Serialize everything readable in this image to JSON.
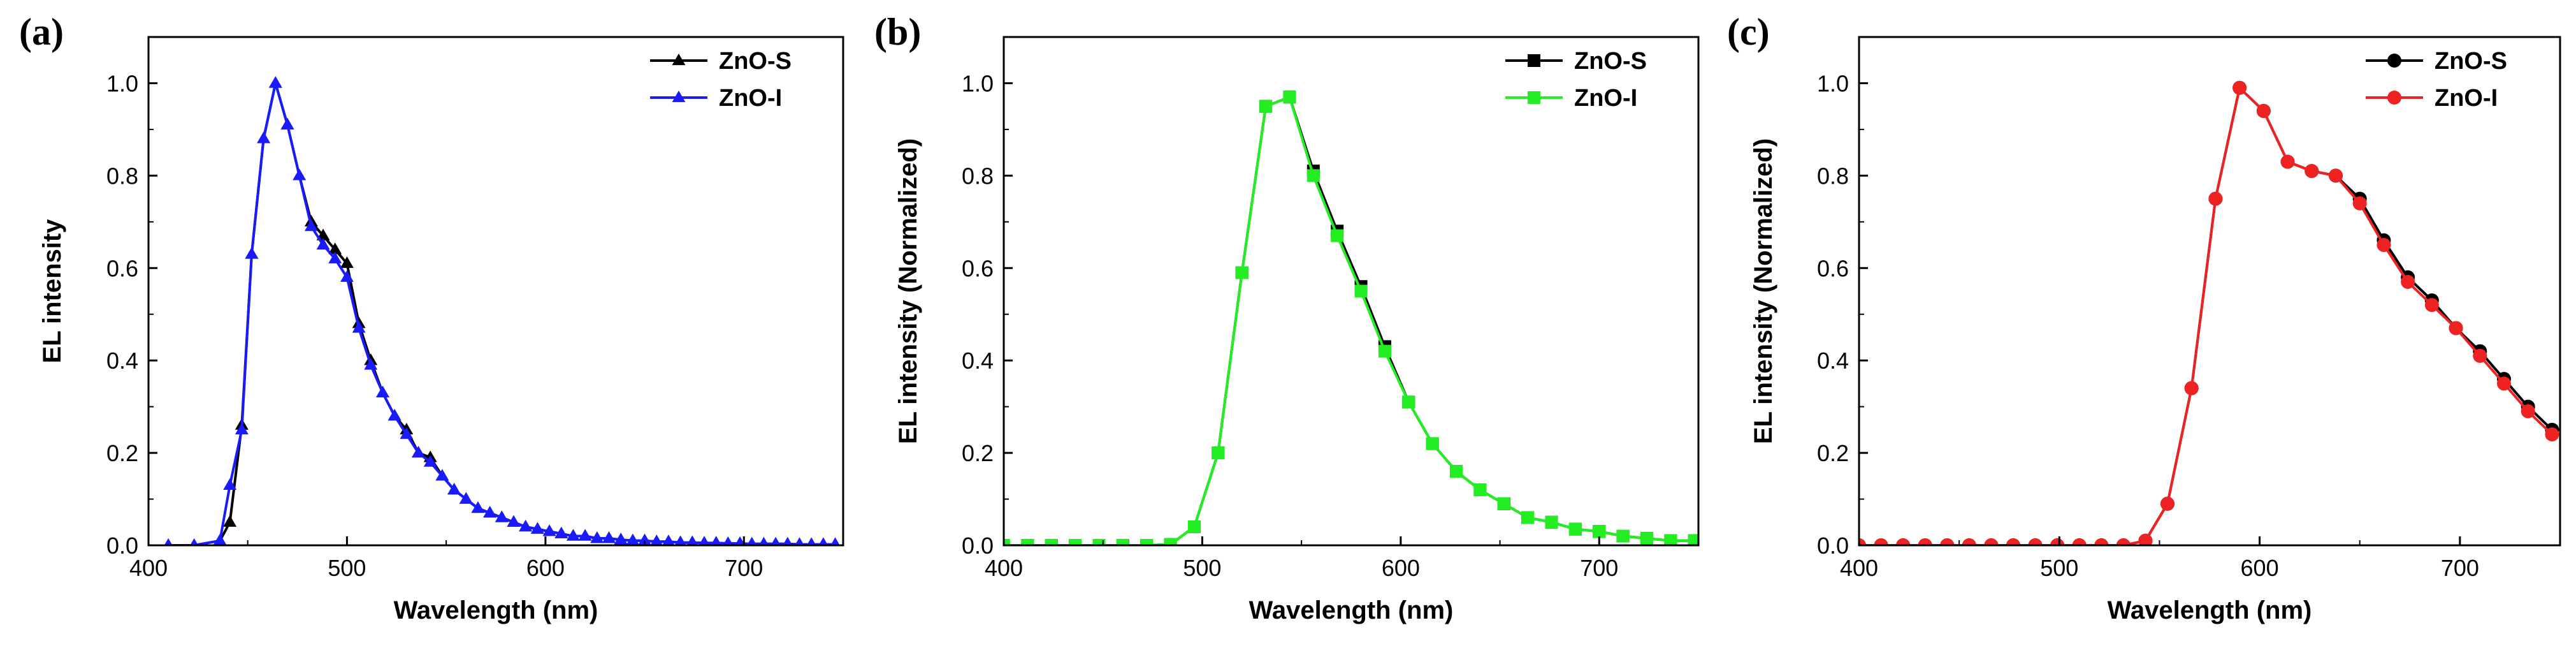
{
  "chart_data": [
    {
      "type": "line",
      "panel_label": "(a)",
      "xlabel": "Wavelength (nm)",
      "ylabel": "EL intensity",
      "xlim": [
        400,
        750
      ],
      "ylim": [
        0,
        1.1
      ],
      "x_ticks": [
        400,
        500,
        600,
        700
      ],
      "x_tick_labels": [
        "400",
        "500",
        "600",
        "700"
      ],
      "y_ticks": [
        0.0,
        0.2,
        0.4,
        0.6,
        0.8,
        1.0
      ],
      "y_tick_labels": [
        "0.0",
        "0.2",
        "0.4",
        "0.6",
        "0.8",
        "1.0"
      ],
      "legend_position": "top-right",
      "series": [
        {
          "name": "ZnO-S",
          "color": "#000000",
          "marker": "triangle",
          "x": [
            410,
            423,
            436,
            441,
            447,
            452,
            458,
            464,
            470,
            476,
            482,
            488,
            494,
            500,
            506,
            512,
            518,
            524,
            530,
            536,
            542,
            548,
            554,
            560,
            566,
            572,
            578,
            584,
            590,
            596,
            602,
            608,
            614,
            620,
            626,
            632,
            638,
            644,
            650,
            656,
            662,
            668,
            674,
            680,
            686,
            692,
            698,
            704,
            710,
            716,
            722,
            728,
            734,
            740,
            746
          ],
          "y": [
            0.0,
            0.0,
            0.01,
            0.05,
            0.26,
            0.63,
            0.88,
            1.0,
            0.91,
            0.8,
            0.7,
            0.67,
            0.64,
            0.61,
            0.48,
            0.4,
            0.33,
            0.28,
            0.25,
            0.2,
            0.19,
            0.15,
            0.12,
            0.1,
            0.08,
            0.07,
            0.06,
            0.05,
            0.04,
            0.035,
            0.03,
            0.025,
            0.02,
            0.02,
            0.015,
            0.015,
            0.012,
            0.01,
            0.01,
            0.008,
            0.008,
            0.006,
            0.006,
            0.005,
            0.005,
            0.004,
            0.004,
            0.003,
            0.003,
            0.003,
            0.003,
            0.002,
            0.002,
            0.002,
            0.002
          ]
        },
        {
          "name": "ZnO-I",
          "color": "#1a1aff",
          "marker": "triangle",
          "x": [
            410,
            423,
            436,
            441,
            447,
            452,
            458,
            464,
            470,
            476,
            482,
            488,
            494,
            500,
            506,
            512,
            518,
            524,
            530,
            536,
            542,
            548,
            554,
            560,
            566,
            572,
            578,
            584,
            590,
            596,
            602,
            608,
            614,
            620,
            626,
            632,
            638,
            644,
            650,
            656,
            662,
            668,
            674,
            680,
            686,
            692,
            698,
            704,
            710,
            716,
            722,
            728,
            734,
            740,
            746
          ],
          "y": [
            0.0,
            0.0,
            0.01,
            0.13,
            0.25,
            0.63,
            0.88,
            1.0,
            0.91,
            0.8,
            0.69,
            0.65,
            0.62,
            0.58,
            0.47,
            0.39,
            0.33,
            0.28,
            0.24,
            0.2,
            0.18,
            0.15,
            0.12,
            0.1,
            0.08,
            0.07,
            0.06,
            0.05,
            0.04,
            0.035,
            0.03,
            0.025,
            0.02,
            0.02,
            0.015,
            0.015,
            0.012,
            0.01,
            0.01,
            0.008,
            0.008,
            0.006,
            0.006,
            0.005,
            0.005,
            0.004,
            0.004,
            0.003,
            0.003,
            0.003,
            0.003,
            0.002,
            0.002,
            0.002,
            0.002
          ]
        }
      ]
    },
    {
      "type": "line",
      "panel_label": "(b)",
      "xlabel": "Wavelength (nm)",
      "ylabel": "EL intensity (Normalized)",
      "xlim": [
        400,
        750
      ],
      "ylim": [
        0,
        1.1
      ],
      "x_ticks": [
        400,
        500,
        600,
        700
      ],
      "x_tick_labels": [
        "400",
        "500",
        "600",
        "700"
      ],
      "y_ticks": [
        0.0,
        0.2,
        0.4,
        0.6,
        0.8,
        1.0
      ],
      "y_tick_labels": [
        "0.0",
        "0.2",
        "0.4",
        "0.6",
        "0.8",
        "1.0"
      ],
      "legend_position": "top-right",
      "series": [
        {
          "name": "ZnO-S",
          "color": "#000000",
          "marker": "square",
          "x": [
            400,
            412,
            424,
            436,
            448,
            460,
            472,
            484,
            496,
            508,
            520,
            532,
            544,
            556,
            568,
            580,
            592,
            604,
            616,
            628,
            640,
            652,
            664,
            676,
            688,
            700,
            712,
            724,
            736,
            748
          ],
          "y": [
            0.0,
            0.0,
            0.0,
            0.0,
            0.0,
            0.0,
            0.0,
            0.002,
            0.04,
            0.2,
            0.59,
            0.95,
            0.97,
            0.81,
            0.68,
            0.56,
            0.43,
            0.31,
            0.22,
            0.16,
            0.12,
            0.09,
            0.06,
            0.05,
            0.035,
            0.03,
            0.02,
            0.015,
            0.01,
            0.01
          ]
        },
        {
          "name": "ZnO-I",
          "color": "#22ee22",
          "marker": "square",
          "x": [
            400,
            412,
            424,
            436,
            448,
            460,
            472,
            484,
            496,
            508,
            520,
            532,
            544,
            556,
            568,
            580,
            592,
            604,
            616,
            628,
            640,
            652,
            664,
            676,
            688,
            700,
            712,
            724,
            736,
            748
          ],
          "y": [
            0.0,
            0.0,
            0.0,
            0.0,
            0.0,
            0.0,
            0.0,
            0.002,
            0.04,
            0.2,
            0.59,
            0.95,
            0.97,
            0.8,
            0.67,
            0.55,
            0.42,
            0.31,
            0.22,
            0.16,
            0.12,
            0.09,
            0.06,
            0.05,
            0.035,
            0.03,
            0.02,
            0.015,
            0.01,
            0.01
          ]
        }
      ]
    },
    {
      "type": "line",
      "panel_label": "(c)",
      "xlabel": "Wavelength (nm)",
      "ylabel": "EL intensity (Normalized)",
      "xlim": [
        400,
        750
      ],
      "ylim": [
        0,
        1.1
      ],
      "x_ticks": [
        400,
        500,
        600,
        700
      ],
      "x_tick_labels": [
        "400",
        "500",
        "600",
        "700"
      ],
      "y_ticks": [
        0.0,
        0.2,
        0.4,
        0.6,
        0.8,
        1.0
      ],
      "y_tick_labels": [
        "0.0",
        "0.2",
        "0.4",
        "0.6",
        "0.8",
        "1.0"
      ],
      "legend_position": "top-right",
      "series": [
        {
          "name": "ZnO-S",
          "color": "#000000",
          "marker": "circle",
          "x": [
            400,
            411,
            422,
            433,
            444,
            455,
            466,
            477,
            488,
            499,
            510,
            521,
            532,
            543,
            554,
            566,
            578,
            590,
            602,
            614,
            626,
            638,
            650,
            662,
            674,
            686,
            698,
            710,
            722,
            734,
            746
          ],
          "y": [
            0.0,
            0.0,
            0.0,
            0.0,
            0.0,
            0.0,
            0.0,
            0.0,
            0.0,
            0.0,
            0.0,
            0.0,
            0.0,
            0.01,
            0.09,
            0.34,
            0.75,
            0.99,
            0.94,
            0.83,
            0.81,
            0.8,
            0.75,
            0.66,
            0.58,
            0.53,
            0.47,
            0.42,
            0.36,
            0.3,
            0.25
          ]
        },
        {
          "name": "ZnO-I",
          "color": "#ee2222",
          "marker": "circle",
          "x": [
            400,
            411,
            422,
            433,
            444,
            455,
            466,
            477,
            488,
            499,
            510,
            521,
            532,
            543,
            554,
            566,
            578,
            590,
            602,
            614,
            626,
            638,
            650,
            662,
            674,
            686,
            698,
            710,
            722,
            734,
            746
          ],
          "y": [
            0.0,
            0.0,
            0.0,
            0.0,
            0.0,
            0.0,
            0.0,
            0.0,
            0.0,
            0.0,
            0.0,
            0.0,
            0.0,
            0.01,
            0.09,
            0.34,
            0.75,
            0.99,
            0.94,
            0.83,
            0.81,
            0.8,
            0.74,
            0.65,
            0.57,
            0.52,
            0.47,
            0.41,
            0.35,
            0.29,
            0.24
          ]
        }
      ]
    }
  ]
}
